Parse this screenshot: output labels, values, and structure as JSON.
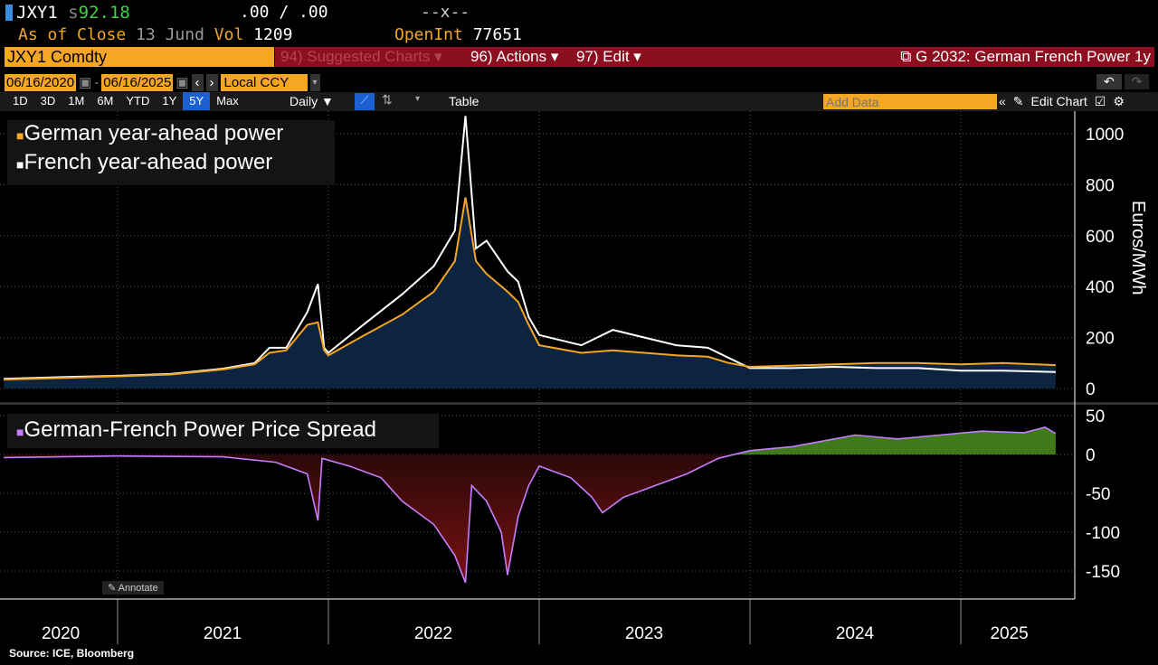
{
  "header": {
    "ticker": "JXY1",
    "price_prefix": "s",
    "price": "92.18",
    "bid_ask": ".00 / .00",
    "change": "--x--",
    "as_of_label": "As of Close",
    "as_of_date": "13 Jund",
    "vol_label": "Vol",
    "vol": "1209",
    "oi_label": "OpenInt",
    "oi": "77651"
  },
  "toolbar": {
    "security": "JXY1 Comdty",
    "suggested": "94) Suggested Charts ▾",
    "actions": "96) Actions ▾",
    "edit": "97) Edit ▾",
    "title": "G 2032: German French Power 1y",
    "start_date": "06/16/2020",
    "end_date": "06/16/2025",
    "dash": "-",
    "currency": "Local CCY",
    "periods": [
      "1D",
      "3D",
      "1M",
      "6M",
      "YTD",
      "1Y",
      "5Y",
      "Max"
    ],
    "selected_period": "5Y",
    "frequency": "Daily ▼",
    "table": "Table",
    "add_data_placeholder": "Add Data",
    "edit_chart": "Edit Chart",
    "annotate": "Annotate"
  },
  "colors": {
    "german": "#f5a623",
    "french": "#ffffff",
    "spread": "#c77dff",
    "area": "#0d2440",
    "neg": "#7a1212",
    "pos": "#3f7a1a"
  },
  "chart_data": [
    {
      "type": "line",
      "legend": [
        "German year-ahead power",
        "French year-ahead power"
      ],
      "ylabel": "Euros/MWh",
      "ylim": [
        0,
        1080
      ],
      "yticks": [
        0,
        200,
        400,
        600,
        800,
        1000
      ],
      "series": [
        {
          "name": "German year-ahead power",
          "points": [
            [
              2020.46,
              35
            ],
            [
              2020.75,
              42
            ],
            [
              2021.0,
              48
            ],
            [
              2021.25,
              55
            ],
            [
              2021.5,
              75
            ],
            [
              2021.65,
              95
            ],
            [
              2021.72,
              140
            ],
            [
              2021.8,
              150
            ],
            [
              2021.9,
              250
            ],
            [
              2021.95,
              260
            ],
            [
              2021.98,
              150
            ],
            [
              2022.0,
              130
            ],
            [
              2022.15,
              200
            ],
            [
              2022.35,
              290
            ],
            [
              2022.5,
              380
            ],
            [
              2022.6,
              500
            ],
            [
              2022.65,
              750
            ],
            [
              2022.7,
              500
            ],
            [
              2022.75,
              450
            ],
            [
              2022.85,
              380
            ],
            [
              2022.9,
              340
            ],
            [
              2022.95,
              250
            ],
            [
              2023.0,
              170
            ],
            [
              2023.2,
              140
            ],
            [
              2023.35,
              150
            ],
            [
              2023.5,
              140
            ],
            [
              2023.65,
              130
            ],
            [
              2023.8,
              125
            ],
            [
              2023.9,
              100
            ],
            [
              2024.0,
              85
            ],
            [
              2024.2,
              90
            ],
            [
              2024.4,
              95
            ],
            [
              2024.6,
              100
            ],
            [
              2024.8,
              100
            ],
            [
              2025.0,
              95
            ],
            [
              2025.2,
              100
            ],
            [
              2025.45,
              92
            ]
          ]
        },
        {
          "name": "French year-ahead power",
          "points": [
            [
              2020.46,
              38
            ],
            [
              2020.75,
              45
            ],
            [
              2021.0,
              50
            ],
            [
              2021.25,
              57
            ],
            [
              2021.5,
              78
            ],
            [
              2021.65,
              100
            ],
            [
              2021.72,
              160
            ],
            [
              2021.8,
              160
            ],
            [
              2021.9,
              300
            ],
            [
              2021.95,
              410
            ],
            [
              2021.98,
              160
            ],
            [
              2022.0,
              140
            ],
            [
              2022.15,
              240
            ],
            [
              2022.35,
              370
            ],
            [
              2022.5,
              480
            ],
            [
              2022.6,
              620
            ],
            [
              2022.65,
              1070
            ],
            [
              2022.7,
              550
            ],
            [
              2022.75,
              580
            ],
            [
              2022.85,
              460
            ],
            [
              2022.9,
              420
            ],
            [
              2022.95,
              280
            ],
            [
              2023.0,
              210
            ],
            [
              2023.2,
              170
            ],
            [
              2023.35,
              230
            ],
            [
              2023.5,
              200
            ],
            [
              2023.65,
              170
            ],
            [
              2023.8,
              160
            ],
            [
              2023.9,
              120
            ],
            [
              2024.0,
              80
            ],
            [
              2024.2,
              80
            ],
            [
              2024.4,
              85
            ],
            [
              2024.6,
              80
            ],
            [
              2024.8,
              80
            ],
            [
              2025.0,
              70
            ],
            [
              2025.2,
              70
            ],
            [
              2025.45,
              65
            ]
          ]
        }
      ]
    },
    {
      "type": "area",
      "legend": [
        "German-French Power Price Spread"
      ],
      "ylim": [
        -170,
        60
      ],
      "yticks": [
        50,
        0,
        -50,
        -100,
        -150
      ],
      "series": [
        {
          "name": "German-French Power Price Spread",
          "points": [
            [
              2020.46,
              -4
            ],
            [
              2021.0,
              -2
            ],
            [
              2021.5,
              -3
            ],
            [
              2021.75,
              -10
            ],
            [
              2021.9,
              -25
            ],
            [
              2021.95,
              -85
            ],
            [
              2021.97,
              -5
            ],
            [
              2022.1,
              -15
            ],
            [
              2022.25,
              -30
            ],
            [
              2022.35,
              -60
            ],
            [
              2022.5,
              -90
            ],
            [
              2022.6,
              -130
            ],
            [
              2022.65,
              -165
            ],
            [
              2022.68,
              -40
            ],
            [
              2022.75,
              -60
            ],
            [
              2022.82,
              -100
            ],
            [
              2022.85,
              -155
            ],
            [
              2022.9,
              -80
            ],
            [
              2022.95,
              -40
            ],
            [
              2023.0,
              -15
            ],
            [
              2023.15,
              -30
            ],
            [
              2023.25,
              -55
            ],
            [
              2023.3,
              -75
            ],
            [
              2023.4,
              -55
            ],
            [
              2023.5,
              -45
            ],
            [
              2023.7,
              -25
            ],
            [
              2023.85,
              -5
            ],
            [
              2024.0,
              5
            ],
            [
              2024.2,
              10
            ],
            [
              2024.4,
              20
            ],
            [
              2024.5,
              25
            ],
            [
              2024.7,
              20
            ],
            [
              2024.9,
              25
            ],
            [
              2025.1,
              30
            ],
            [
              2025.3,
              28
            ],
            [
              2025.4,
              35
            ],
            [
              2025.45,
              27
            ]
          ]
        }
      ]
    }
  ],
  "xaxis": {
    "labels": [
      "2020",
      "2021",
      "2022",
      "2023",
      "2024",
      "2025"
    ]
  },
  "source": "Source: ICE, Bloomberg"
}
